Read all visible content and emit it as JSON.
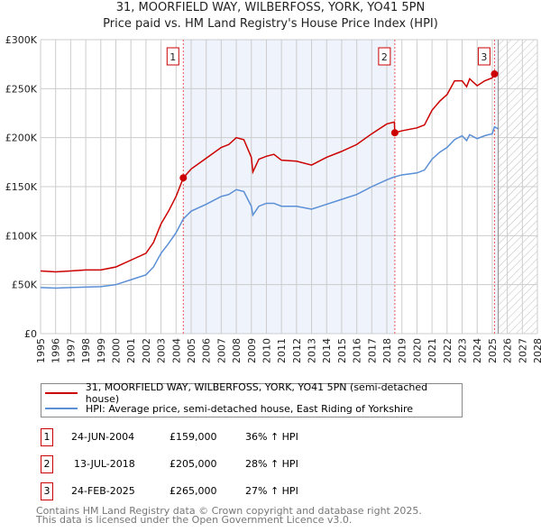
{
  "chart_data": {
    "type": "line",
    "title": "31, MOORFIELD WAY, WILBERFOSS, YORK, YO41 5PN",
    "subtitle": "Price paid vs. HM Land Registry's House Price Index (HPI)",
    "xlim": [
      1995,
      2028
    ],
    "ylim": [
      0,
      300000
    ],
    "y_ticks": [
      {
        "v": 0,
        "label": "£0"
      },
      {
        "v": 50000,
        "label": "£50K"
      },
      {
        "v": 100000,
        "label": "£100K"
      },
      {
        "v": 150000,
        "label": "£150K"
      },
      {
        "v": 200000,
        "label": "£200K"
      },
      {
        "v": 250000,
        "label": "£250K"
      },
      {
        "v": 300000,
        "label": "£300K"
      }
    ],
    "x_ticks": [
      "1995",
      "1996",
      "1997",
      "1998",
      "1999",
      "2000",
      "2001",
      "2002",
      "2003",
      "2004",
      "2005",
      "2006",
      "2007",
      "2008",
      "2009",
      "2010",
      "2011",
      "2012",
      "2013",
      "2014",
      "2015",
      "2016",
      "2017",
      "2018",
      "2019",
      "2020",
      "2021",
      "2022",
      "2023",
      "2024",
      "2025",
      "2026",
      "2027",
      "2028"
    ],
    "grid": true,
    "shaded_ranges": [
      [
        2004.48,
        2018.53
      ],
      [
        2025.15,
        2025.4
      ]
    ],
    "forecast_hatch_from": 2025.4,
    "series": [
      {
        "name": "31, MOORFIELD WAY, WILBERFOSS, YORK, YO41 5PN (semi-detached house)",
        "color": "#cc0000",
        "x": [
          1995,
          1996,
          1997,
          1998,
          1999,
          2000,
          2001,
          2002,
          2002.5,
          2003,
          2003.5,
          2004,
          2004.48,
          2005,
          2006,
          2007,
          2007.5,
          2008,
          2008.5,
          2009,
          2009.1,
          2009.5,
          2010,
          2010.5,
          2011,
          2012,
          2013,
          2014,
          2015,
          2016,
          2017,
          2018,
          2018.5,
          2018.53,
          2019,
          2020,
          2020.5,
          2021,
          2021.5,
          2022,
          2022.5,
          2023,
          2023.3,
          2023.5,
          2024,
          2024.5,
          2025,
          2025.15,
          2025.4
        ],
        "y": [
          64000,
          63000,
          64000,
          65000,
          65000,
          68000,
          75000,
          82000,
          93000,
          112000,
          125000,
          140000,
          159000,
          168000,
          179000,
          190000,
          193000,
          200000,
          198000,
          180000,
          165000,
          178000,
          181000,
          183000,
          177000,
          176000,
          172000,
          180000,
          186000,
          193000,
          204000,
          214000,
          216000,
          205000,
          207000,
          210000,
          213000,
          228000,
          237000,
          244000,
          258000,
          258000,
          252000,
          260000,
          253000,
          258000,
          261000,
          265000,
          266000
        ]
      },
      {
        "name": "HPI: Average price, semi-detached house, East Riding of Yorkshire",
        "color": "#5b8fd6",
        "x": [
          1995,
          1996,
          1997,
          1998,
          1999,
          2000,
          2001,
          2002,
          2002.5,
          2003,
          2003.5,
          2004,
          2004.48,
          2005,
          2006,
          2007,
          2007.5,
          2008,
          2008.5,
          2009,
          2009.1,
          2009.5,
          2010,
          2010.5,
          2011,
          2012,
          2013,
          2014,
          2015,
          2016,
          2017,
          2018,
          2018.5,
          2018.53,
          2019,
          2020,
          2020.5,
          2021,
          2021.5,
          2022,
          2022.5,
          2023,
          2023.3,
          2023.5,
          2024,
          2024.5,
          2025,
          2025.15,
          2025.4
        ],
        "y": [
          47000,
          46500,
          47000,
          47500,
          48000,
          50000,
          55000,
          60000,
          68000,
          82000,
          92000,
          103000,
          117000,
          125000,
          132000,
          140000,
          142000,
          147000,
          145000,
          130000,
          121000,
          130000,
          133000,
          133000,
          130000,
          130000,
          127000,
          132000,
          137000,
          142000,
          150000,
          157000,
          160000,
          160000,
          162000,
          164000,
          167000,
          178000,
          185000,
          190000,
          198000,
          202000,
          197000,
          203000,
          199000,
          202000,
          204000,
          211000,
          209000
        ]
      }
    ],
    "sales": [
      {
        "label": "1",
        "x": 2004.48,
        "price": 159000,
        "date": "24-JUN-2004",
        "price_text": "£159,000",
        "hpi_text": "36% ↑ HPI"
      },
      {
        "label": "2",
        "x": 2018.53,
        "price": 205000,
        "date": "13-JUL-2018",
        "price_text": "£205,000",
        "hpi_text": "28% ↑ HPI"
      },
      {
        "label": "3",
        "x": 2025.15,
        "price": 265000,
        "date": "24-FEB-2025",
        "price_text": "£265,000",
        "hpi_text": "27% ↑ HPI"
      }
    ],
    "legend": "below"
  },
  "footer": {
    "line1": "Contains HM Land Registry data © Crown copyright and database right 2025.",
    "line2": "This data is licensed under the Open Government Licence v3.0."
  }
}
